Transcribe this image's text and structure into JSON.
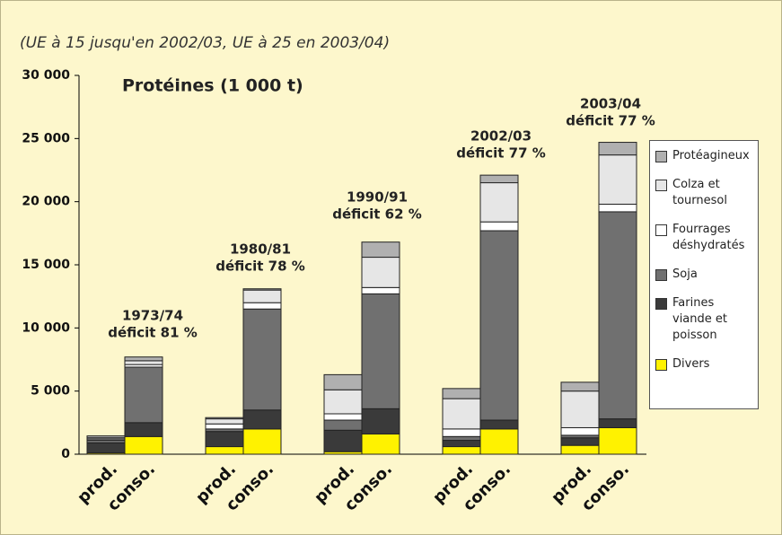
{
  "chart_data": {
    "type": "stacked_bar",
    "subtitle": "(UE à 15 jusqu'en 2002/03, UE à 25 en 2003/04)",
    "title": "Protéines (1 000 t)",
    "categories": [
      "prod.",
      "conso.",
      "prod.",
      "conso.",
      "prod.",
      "conso.",
      "prod.",
      "conso.",
      "prod.",
      "conso."
    ],
    "annotations": [
      [
        "1973/74",
        "déficit 81 %"
      ],
      [
        "1980/81",
        "déficit 78 %"
      ],
      [
        "1990/91",
        "déficit 62 %"
      ],
      [
        "2002/03",
        "déficit 77 %"
      ],
      [
        "2003/04",
        "déficit 77 %"
      ]
    ],
    "series": [
      {
        "name": "Divers",
        "color": "#fff200",
        "values": [
          100,
          1400,
          600,
          2000,
          200,
          1600,
          600,
          2000,
          700,
          2100
        ]
      },
      {
        "name": "Farines viande et poisson",
        "color": "#3a3a3a",
        "values": [
          800,
          1100,
          1200,
          1500,
          1700,
          2000,
          500,
          700,
          600,
          700
        ]
      },
      {
        "name": "Soja",
        "color": "#707070",
        "values": [
          200,
          4400,
          200,
          8000,
          800,
          9100,
          300,
          15000,
          200,
          16400
        ]
      },
      {
        "name": "Fourrages déshydratés",
        "color": "#ffffff",
        "values": [
          100,
          200,
          400,
          500,
          500,
          500,
          600,
          700,
          600,
          600
        ]
      },
      {
        "name": "Colza et tournesol",
        "color": "#e6e6e6",
        "values": [
          100,
          300,
          400,
          1000,
          1900,
          2400,
          2400,
          3100,
          2900,
          3900
        ]
      },
      {
        "name": "Protéagineux",
        "color": "#b0b0b0",
        "values": [
          150,
          300,
          100,
          100,
          1200,
          1200,
          800,
          600,
          700,
          1000
        ]
      }
    ],
    "ylim": [
      0,
      30000
    ],
    "yticks": [
      0,
      {
        "value": 5000,
        "label": "5 000"
      },
      {
        "value": 10000,
        "label": "10 000"
      },
      {
        "value": 15000,
        "label": "15 000"
      },
      {
        "value": 20000,
        "label": "20 000"
      },
      {
        "value": 25000,
        "label": "25 000"
      },
      {
        "value": 30000,
        "label": "30 000"
      }
    ]
  }
}
